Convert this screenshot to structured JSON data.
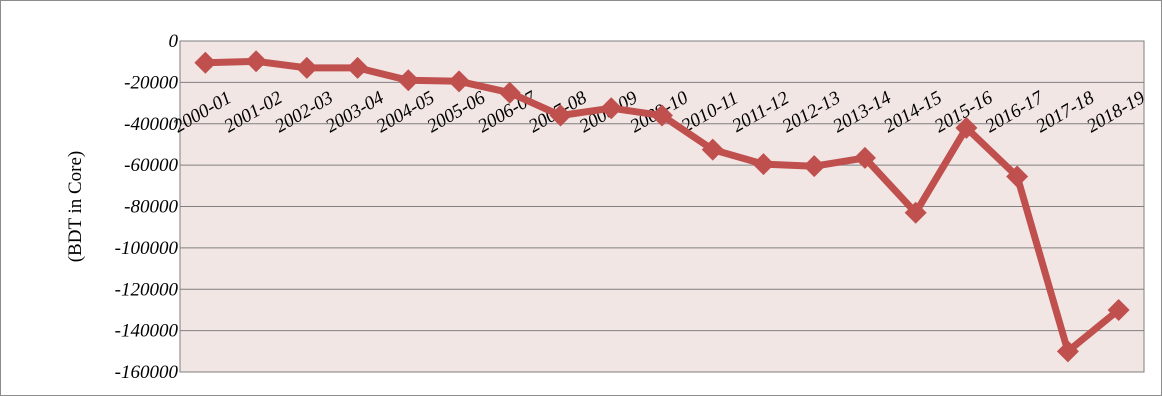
{
  "chart_data": {
    "type": "line",
    "title": "",
    "xlabel": "",
    "ylabel": "(BDT in Core)",
    "ylim": [
      -160000,
      0
    ],
    "yticks": [
      0,
      -20000,
      -40000,
      -60000,
      -80000,
      -100000,
      -120000,
      -140000,
      -160000
    ],
    "grid": true,
    "legend": "none",
    "colors": {
      "line": "#c0504d",
      "plot_bg": "#f2e6e5",
      "grid": "#7f7f7f"
    },
    "categories": [
      "2000-01",
      "2001-02",
      "2002-03",
      "2003-04",
      "2004-05",
      "2005-06",
      "2006-07",
      "2007-08",
      "2008-09",
      "2009-10",
      "2010-11",
      "2011-12",
      "2012-13",
      "2013-14",
      "2014-15",
      "2015-16",
      "2016-17",
      "2017-18",
      "2018-19"
    ],
    "series": [
      {
        "values": [
          -10500,
          -9800,
          -13000,
          -13000,
          -19000,
          -19500,
          -25000,
          -36000,
          -32500,
          -36000,
          -52500,
          -59500,
          -60500,
          -56500,
          -83000,
          -42000,
          -65500,
          -150000,
          -130000
        ]
      }
    ]
  }
}
